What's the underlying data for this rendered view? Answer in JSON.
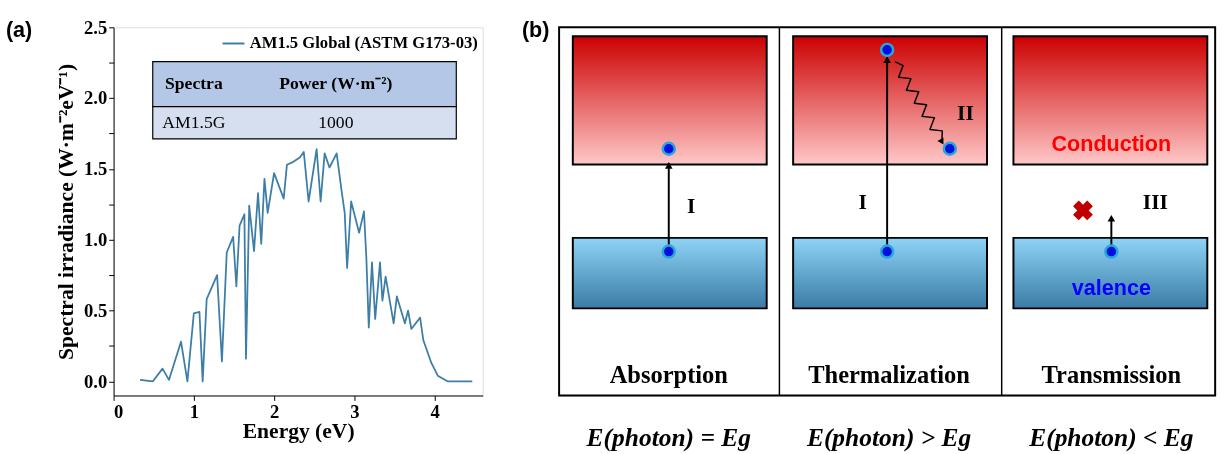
{
  "chart_data": [
    {
      "type": "line",
      "title": "(a)",
      "xlabel": "Energy (eV)",
      "ylabel": "Spectral irradiance (W·m⁻²eV⁻¹)",
      "series": [
        {
          "name": "AM1.5 Global (ASTM G173-03)",
          "color": "#3d7ea6",
          "x": [
            0.33,
            0.49,
            0.61,
            0.69,
            0.84,
            0.92,
            1.0,
            1.07,
            1.11,
            1.16,
            1.29,
            1.35,
            1.41,
            1.49,
            1.53,
            1.57,
            1.63,
            1.65,
            1.69,
            1.75,
            1.8,
            1.84,
            1.88,
            1.92,
            2.0,
            2.12,
            2.16,
            2.24,
            2.32,
            2.37,
            2.43,
            2.53,
            2.58,
            2.63,
            2.69,
            2.78,
            2.84,
            2.88,
            2.91,
            2.96,
            3.06,
            3.12,
            3.15,
            3.18,
            3.22,
            3.26,
            3.32,
            3.35,
            3.39,
            3.49,
            3.53,
            3.63,
            3.67,
            3.71,
            3.82,
            3.86,
            3.96,
            4.04,
            4.16,
            4.47
          ],
          "values": [
            0.01,
            0.0,
            0.09,
            0.01,
            0.28,
            0.0,
            0.48,
            0.49,
            0.0,
            0.58,
            0.75,
            0.14,
            0.91,
            1.02,
            0.67,
            1.1,
            1.18,
            0.16,
            1.24,
            0.92,
            1.33,
            0.97,
            1.43,
            1.19,
            1.47,
            1.29,
            1.53,
            1.55,
            1.58,
            1.62,
            1.27,
            1.64,
            1.27,
            1.61,
            1.51,
            1.61,
            1.35,
            1.19,
            0.8,
            1.27,
            1.05,
            1.2,
            0.87,
            0.38,
            0.84,
            0.44,
            0.84,
            0.57,
            0.74,
            0.41,
            0.6,
            0.41,
            0.5,
            0.37,
            0.45,
            0.29,
            0.13,
            0.04,
            0.0,
            0.0
          ]
        }
      ],
      "xlim": [
        0,
        4.6
      ],
      "ylim": [
        -0.1,
        2.5
      ],
      "xticks": [
        0,
        1,
        2,
        3,
        4
      ],
      "yticks": [
        {
          "value": 0,
          "label": "0.0"
        },
        {
          "value": 0.25,
          "label": null
        },
        {
          "value": 0.5,
          "label": "0.5"
        },
        {
          "value": 0.75,
          "label": null
        },
        {
          "value": 1,
          "label": "1.0"
        },
        {
          "value": 1.25,
          "label": null
        },
        {
          "value": 1.5,
          "label": "1.5"
        },
        {
          "value": 1.75,
          "label": null
        },
        {
          "value": 2,
          "label": "2.0"
        },
        {
          "value": 2.25,
          "label": null
        },
        {
          "value": 2.5,
          "label": "2.5"
        }
      ],
      "legend": "top right",
      "grid": false,
      "annotations": [
        "Spectra",
        "Power  (W·m⁻²)",
        "AM1.5G",
        "1000"
      ]
    },
    {
      "type": "other",
      "title": "(b)",
      "annotations": [
        "I",
        "I",
        "II",
        "III",
        "Conduction",
        "valence",
        "Absorption",
        "Thermalization",
        "Transmission",
        "E(photon) = Eg",
        "E(photon) > Eg",
        "E(photon) < Eg"
      ]
    }
  ]
}
